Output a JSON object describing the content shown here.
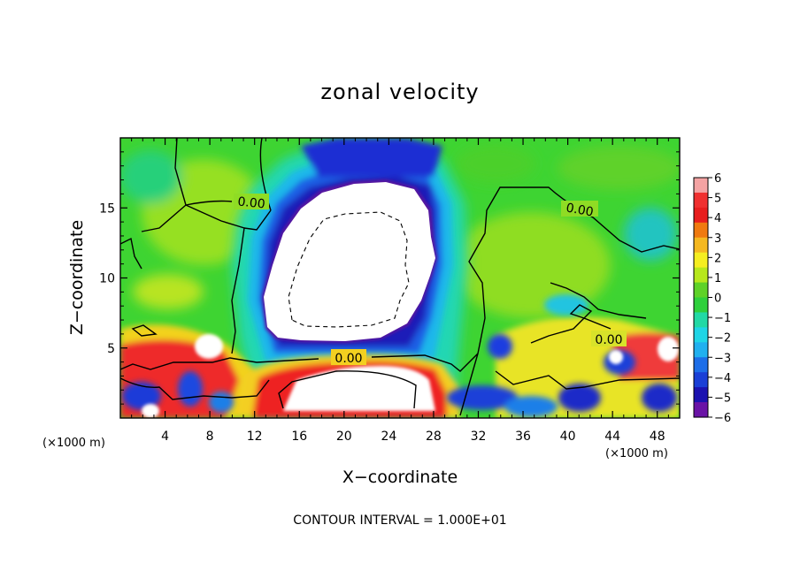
{
  "chart_data": {
    "type": "heatmap",
    "title": "zonal velocity",
    "xlabel": "X−coordinate",
    "ylabel": "Z−coordinate",
    "x_unit_left": "(×1000 m)",
    "x_unit_right": "(×1000 m)",
    "xlim": [
      0,
      50
    ],
    "ylim": [
      0,
      20
    ],
    "x_ticks": [
      4,
      8,
      12,
      16,
      20,
      24,
      28,
      32,
      36,
      40,
      44,
      48
    ],
    "y_ticks": [
      5,
      10,
      15
    ],
    "colorbar": {
      "ticks": [
        "6",
        "5",
        "4",
        "3",
        "2",
        "1",
        "0",
        "−1",
        "−2",
        "−3",
        "−4",
        "−5",
        "−6"
      ],
      "range": [
        -6,
        6
      ],
      "colors": [
        "#f4a3a3",
        "#f03030",
        "#e81e1e",
        "#f07a10",
        "#f5b820",
        "#f5ee20",
        "#b7e81c",
        "#5ed228",
        "#2ed03c",
        "#22d9a5",
        "#1fd5e6",
        "#21b0ef",
        "#1d6ee8",
        "#1a3fd6",
        "#1b12b0",
        "#6a13a6"
      ]
    },
    "contour_labels": [
      "0.00",
      "0.00",
      "0.00",
      "0.00"
    ],
    "footer": "CONTOUR INTERVAL = 1.000E+01"
  }
}
